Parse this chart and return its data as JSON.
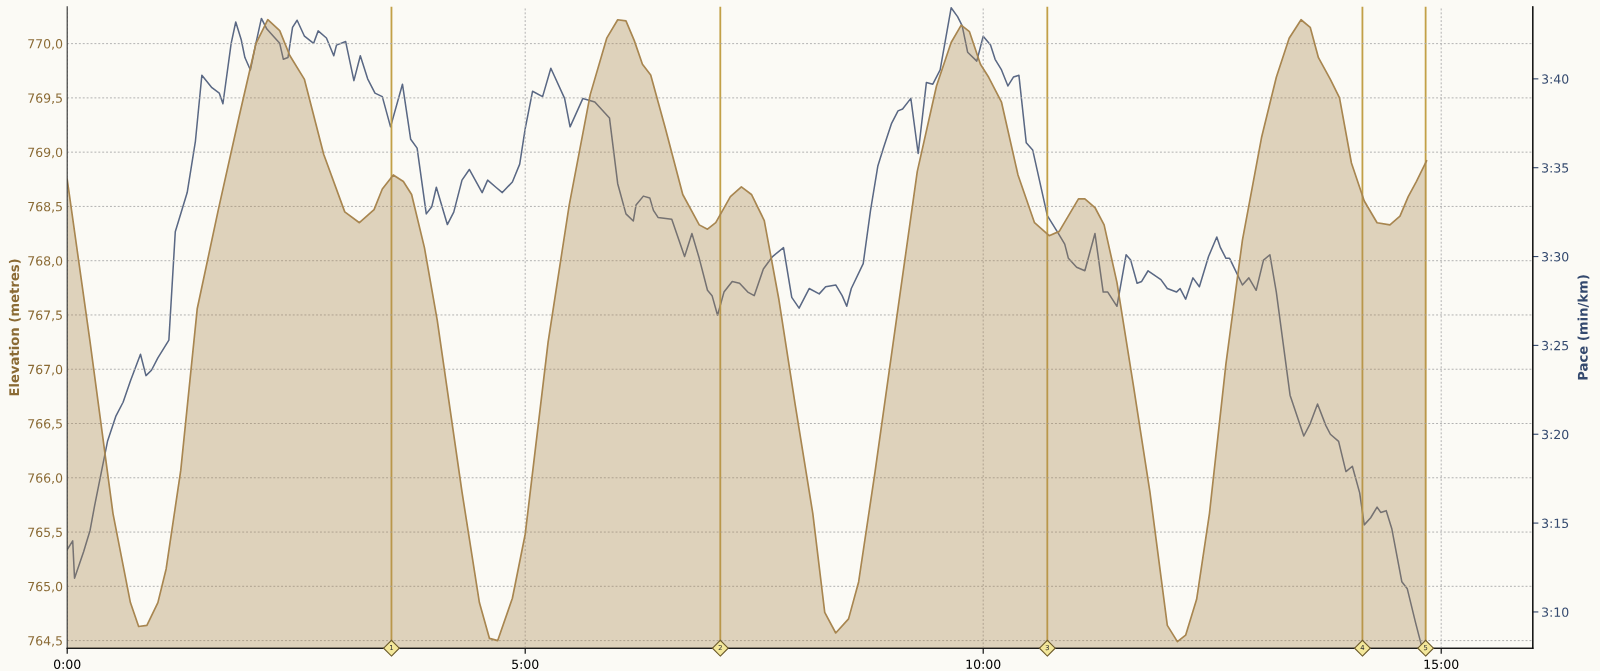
{
  "chart_data": {
    "type": "area",
    "xlim": [
      0,
      16
    ],
    "xticks": [
      {
        "value": 0,
        "label": "0:00"
      },
      {
        "value": 5,
        "label": "5:00"
      },
      {
        "value": 10,
        "label": "10:00"
      },
      {
        "value": 15,
        "label": "15:00"
      }
    ],
    "ylabel": "Elevation (metres)",
    "ylim": [
      764.43,
      770.34
    ],
    "yticks": [
      {
        "value": 764.5,
        "label": "764,5"
      },
      {
        "value": 765.0,
        "label": "765,0"
      },
      {
        "value": 765.5,
        "label": "765,5"
      },
      {
        "value": 766.0,
        "label": "766,0"
      },
      {
        "value": 766.5,
        "label": "766,5"
      },
      {
        "value": 767.0,
        "label": "767,0"
      },
      {
        "value": 767.5,
        "label": "767,5"
      },
      {
        "value": 768.0,
        "label": "768,0"
      },
      {
        "value": 768.5,
        "label": "768,5"
      },
      {
        "value": 769.0,
        "label": "769,0"
      },
      {
        "value": 769.5,
        "label": "769,5"
      },
      {
        "value": 770.0,
        "label": "770,0"
      }
    ],
    "y2label": "Pace (min/km)",
    "y2lim": [
      187.96,
      224.06
    ],
    "y2ticks": [
      {
        "value": 190,
        "label": "3:10"
      },
      {
        "value": 195,
        "label": "3:15"
      },
      {
        "value": 200,
        "label": "3:20"
      },
      {
        "value": 205,
        "label": "3:25"
      },
      {
        "value": 210,
        "label": "3:30"
      },
      {
        "value": 215,
        "label": "3:35"
      },
      {
        "value": 220,
        "label": "3:40"
      }
    ],
    "grid": true,
    "series": [
      {
        "axis": "y",
        "color": "#a88650",
        "x": [
          0,
          0.25,
          0.5,
          0.69,
          0.78,
          0.87,
          0.99,
          1.08,
          1.24,
          1.42,
          1.65,
          1.88,
          2.06,
          2.19,
          2.32,
          2.43,
          2.59,
          2.8,
          3.03,
          3.19,
          3.35,
          3.44,
          3.56,
          3.67,
          3.76,
          3.9,
          4.04,
          4.31,
          4.5,
          4.61,
          4.7,
          4.86,
          5.0,
          5.25,
          5.48,
          5.71,
          5.89,
          6.01,
          6.1,
          6.19,
          6.28,
          6.37,
          6.53,
          6.72,
          6.9,
          6.99,
          7.08,
          7.24,
          7.36,
          7.47,
          7.61,
          7.77,
          7.95,
          8.14,
          8.27,
          8.39,
          8.53,
          8.64,
          8.82,
          9.05,
          9.28,
          9.49,
          9.65,
          9.76,
          9.85,
          9.97,
          10.06,
          10.2,
          10.38,
          10.56,
          10.72,
          10.83,
          11.04,
          11.11,
          11.22,
          11.32,
          11.46,
          11.64,
          11.82,
          12.01,
          12.12,
          12.21,
          12.33,
          12.47,
          12.65,
          12.83,
          13.04,
          13.2,
          13.34,
          13.47,
          13.57,
          13.66,
          13.79,
          13.89,
          14.02,
          14.16,
          14.3,
          14.44,
          14.55,
          14.64,
          14.73,
          14.84
        ],
        "values": [
          768.75,
          767.25,
          765.67,
          764.85,
          764.63,
          764.64,
          764.85,
          765.16,
          766.07,
          767.56,
          768.47,
          769.34,
          770.0,
          770.22,
          770.12,
          769.89,
          769.67,
          768.98,
          768.45,
          768.35,
          768.47,
          768.66,
          768.79,
          768.73,
          768.61,
          768.12,
          767.45,
          765.87,
          764.85,
          764.52,
          764.5,
          764.89,
          765.48,
          767.25,
          768.51,
          769.53,
          770.05,
          770.22,
          770.21,
          770.03,
          769.81,
          769.71,
          769.22,
          768.61,
          768.33,
          768.29,
          768.35,
          768.59,
          768.68,
          768.61,
          768.37,
          767.64,
          766.66,
          765.67,
          764.76,
          764.57,
          764.7,
          765.04,
          766.06,
          767.44,
          768.82,
          769.61,
          770.01,
          770.17,
          770.11,
          769.81,
          769.69,
          769.46,
          768.79,
          768.35,
          768.23,
          768.27,
          768.57,
          768.57,
          768.49,
          768.33,
          767.8,
          766.85,
          765.87,
          764.64,
          764.49,
          764.55,
          764.88,
          765.67,
          767.05,
          768.19,
          769.14,
          769.69,
          770.05,
          770.22,
          770.15,
          769.87,
          769.67,
          769.5,
          768.9,
          768.55,
          768.35,
          768.33,
          768.41,
          768.59,
          768.73,
          768.92
        ]
      },
      {
        "type": "line",
        "axis": "y2",
        "color": "#5a6884",
        "x": [
          0,
          0.06,
          0.08,
          0.18,
          0.25,
          0.3,
          0.44,
          0.53,
          0.61,
          0.69,
          0.8,
          0.86,
          0.92,
          0.99,
          1.11,
          1.18,
          1.31,
          1.4,
          1.47,
          1.58,
          1.66,
          1.7,
          1.79,
          1.84,
          1.9,
          1.94,
          2.0,
          2.06,
          2.12,
          2.18,
          2.32,
          2.36,
          2.41,
          2.46,
          2.51,
          2.59,
          2.69,
          2.74,
          2.83,
          2.91,
          2.94,
          3.04,
          3.13,
          3.2,
          3.28,
          3.36,
          3.44,
          3.53,
          3.66,
          3.75,
          3.82,
          3.92,
          3.98,
          4.03,
          4.15,
          4.22,
          4.31,
          4.39,
          4.53,
          4.59,
          4.68,
          4.75,
          4.86,
          4.94,
          5.0,
          5.08,
          5.19,
          5.28,
          5.43,
          5.49,
          5.63,
          5.76,
          5.92,
          6.01,
          6.1,
          6.18,
          6.21,
          6.29,
          6.36,
          6.4,
          6.45,
          6.6,
          6.74,
          6.82,
          6.9,
          6.99,
          7.04,
          7.1,
          7.17,
          7.26,
          7.34,
          7.43,
          7.5,
          7.6,
          7.7,
          7.82,
          7.91,
          7.99,
          8.1,
          8.21,
          8.28,
          8.39,
          8.46,
          8.51,
          8.56,
          8.69,
          8.77,
          8.85,
          8.91,
          9.0,
          9.07,
          9.12,
          9.21,
          9.29,
          9.38,
          9.45,
          9.53,
          9.65,
          9.72,
          9.77,
          9.83,
          9.93,
          10.0,
          10.08,
          10.13,
          10.2,
          10.27,
          10.33,
          10.39,
          10.47,
          10.54,
          10.7,
          10.82,
          10.89,
          10.93,
          11.02,
          11.11,
          11.22,
          11.31,
          11.36,
          11.46,
          11.56,
          11.61,
          11.68,
          11.73,
          11.8,
          11.94,
          12.01,
          12.11,
          12.15,
          12.21,
          12.29,
          12.36,
          12.46,
          12.55,
          12.59,
          12.65,
          12.69,
          12.83,
          12.9,
          12.98,
          13.06,
          13.13,
          13.2,
          13.35,
          13.5,
          13.57,
          13.65,
          13.74,
          13.79,
          13.88,
          13.96,
          14.03,
          14.11,
          14.16,
          14.23,
          14.3,
          14.34,
          14.4,
          14.46,
          14.57,
          14.63,
          14.72,
          14.78
        ],
        "values": [
          193.5,
          194.0,
          191.9,
          193.4,
          194.6,
          196.0,
          199.6,
          201.0,
          201.8,
          203.0,
          204.5,
          203.3,
          203.6,
          204.3,
          205.3,
          211.4,
          213.6,
          216.5,
          220.2,
          219.5,
          219.2,
          218.6,
          222.0,
          223.2,
          222.2,
          221.2,
          220.5,
          222.0,
          223.4,
          222.8,
          222.0,
          221.1,
          221.2,
          222.9,
          223.3,
          222.4,
          222.0,
          222.7,
          222.3,
          221.3,
          221.9,
          222.1,
          219.9,
          221.3,
          220.0,
          219.2,
          219.0,
          217.3,
          219.7,
          216.6,
          216.1,
          212.4,
          212.8,
          213.9,
          211.8,
          212.5,
          214.3,
          214.9,
          213.6,
          214.3,
          213.9,
          213.6,
          214.2,
          215.2,
          217.2,
          219.3,
          219.0,
          220.6,
          218.9,
          217.3,
          218.9,
          218.7,
          217.8,
          214.1,
          212.4,
          212.0,
          212.9,
          213.4,
          213.3,
          212.6,
          212.2,
          212.1,
          210.0,
          211.3,
          209.9,
          208.1,
          207.8,
          206.7,
          208.0,
          208.6,
          208.5,
          208.0,
          207.8,
          209.3,
          210.0,
          210.5,
          207.7,
          207.1,
          208.2,
          207.9,
          208.3,
          208.4,
          207.8,
          207.2,
          208.2,
          209.6,
          212.6,
          215.1,
          216.1,
          217.5,
          218.2,
          218.3,
          218.9,
          215.8,
          219.8,
          219.7,
          220.5,
          224.0,
          223.5,
          223.0,
          221.5,
          221.0,
          222.4,
          221.9,
          221.1,
          220.5,
          219.6,
          220.1,
          220.2,
          216.4,
          216.0,
          212.3,
          211.3,
          210.7,
          209.9,
          209.4,
          209.2,
          211.3,
          208.0,
          208.0,
          207.2,
          210.1,
          209.8,
          208.5,
          208.6,
          209.2,
          208.7,
          208.2,
          208.0,
          208.2,
          207.6,
          208.8,
          208.3,
          210.0,
          211.1,
          210.5,
          209.9,
          209.9,
          208.4,
          208.8,
          208.1,
          209.8,
          210.1,
          208.0,
          202.2,
          199.9,
          200.6,
          201.7,
          200.5,
          200.0,
          199.6,
          197.9,
          198.2,
          196.7,
          194.9,
          195.3,
          195.9,
          195.6,
          195.7,
          194.7,
          191.7,
          191.3,
          189.4,
          188.2
        ]
      }
    ],
    "ref_lines": [
      {
        "axis": "x",
        "value": 3.54,
        "color": "#c2a047"
      },
      {
        "axis": "x",
        "value": 7.13,
        "color": "#c2a047"
      },
      {
        "axis": "x",
        "value": 10.7,
        "color": "#c2a047"
      },
      {
        "axis": "x",
        "value": 14.14,
        "color": "#c2a047"
      },
      {
        "axis": "x",
        "value": 14.83,
        "color": "#c2a047"
      }
    ],
    "annotations": [
      {
        "text": "1",
        "x": 3.54,
        "y": 764.43
      },
      {
        "text": "2",
        "x": 7.13,
        "y": 764.43
      },
      {
        "text": "3",
        "x": 10.7,
        "y": 764.43
      },
      {
        "text": "4",
        "x": 14.14,
        "y": 764.43
      },
      {
        "text": "5",
        "x": 14.83,
        "y": 764.43
      }
    ]
  }
}
